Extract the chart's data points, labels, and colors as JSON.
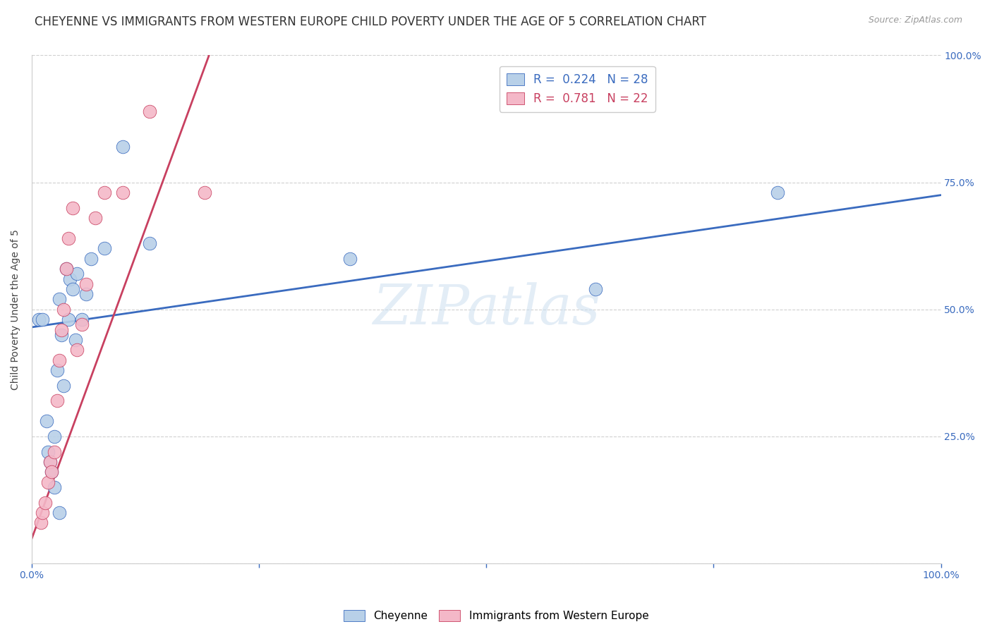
{
  "title": "CHEYENNE VS IMMIGRANTS FROM WESTERN EUROPE CHILD POVERTY UNDER THE AGE OF 5 CORRELATION CHART",
  "source": "Source: ZipAtlas.com",
  "ylabel": "Child Poverty Under the Age of 5",
  "xlim": [
    0.0,
    1.0
  ],
  "ylim": [
    0.0,
    1.0
  ],
  "background_color": "#ffffff",
  "grid_color": "#d0d0d0",
  "cheyenne_color": "#b8d0e8",
  "immigrant_color": "#f4b8c8",
  "cheyenne_line_color": "#3a6bbf",
  "immigrant_line_color": "#c84060",
  "cheyenne_R": "0.224",
  "cheyenne_N": "28",
  "immigrant_R": "0.781",
  "immigrant_N": "22",
  "legend_label_1": "Cheyenne",
  "legend_label_2": "Immigrants from Western Europe",
  "cheyenne_points_x": [
    0.008,
    0.012,
    0.016,
    0.018,
    0.02,
    0.022,
    0.025,
    0.025,
    0.028,
    0.03,
    0.03,
    0.033,
    0.035,
    0.038,
    0.04,
    0.042,
    0.045,
    0.048,
    0.05,
    0.055,
    0.06,
    0.065,
    0.08,
    0.1,
    0.13,
    0.35,
    0.62,
    0.82
  ],
  "cheyenne_points_y": [
    0.48,
    0.48,
    0.28,
    0.22,
    0.2,
    0.18,
    0.15,
    0.25,
    0.38,
    0.1,
    0.52,
    0.45,
    0.35,
    0.58,
    0.48,
    0.56,
    0.54,
    0.44,
    0.57,
    0.48,
    0.53,
    0.6,
    0.62,
    0.82,
    0.63,
    0.6,
    0.54,
    0.73
  ],
  "cheyenne_line_x": [
    0.0,
    1.0
  ],
  "cheyenne_line_y": [
    0.465,
    0.725
  ],
  "immigrant_points_x": [
    0.01,
    0.012,
    0.015,
    0.018,
    0.02,
    0.022,
    0.025,
    0.028,
    0.03,
    0.033,
    0.035,
    0.038,
    0.04,
    0.045,
    0.05,
    0.055,
    0.06,
    0.07,
    0.08,
    0.1,
    0.13,
    0.19
  ],
  "immigrant_points_y": [
    0.08,
    0.1,
    0.12,
    0.16,
    0.2,
    0.18,
    0.22,
    0.32,
    0.4,
    0.46,
    0.5,
    0.58,
    0.64,
    0.7,
    0.42,
    0.47,
    0.55,
    0.68,
    0.73,
    0.73,
    0.89,
    0.73
  ],
  "immigrant_line_x": [
    -0.01,
    0.195
  ],
  "immigrant_line_y": [
    0.0,
    1.0
  ],
  "watermark_text": "ZIPatlas",
  "title_fontsize": 12,
  "axis_label_fontsize": 10,
  "tick_fontsize": 10,
  "legend_fontsize": 12
}
